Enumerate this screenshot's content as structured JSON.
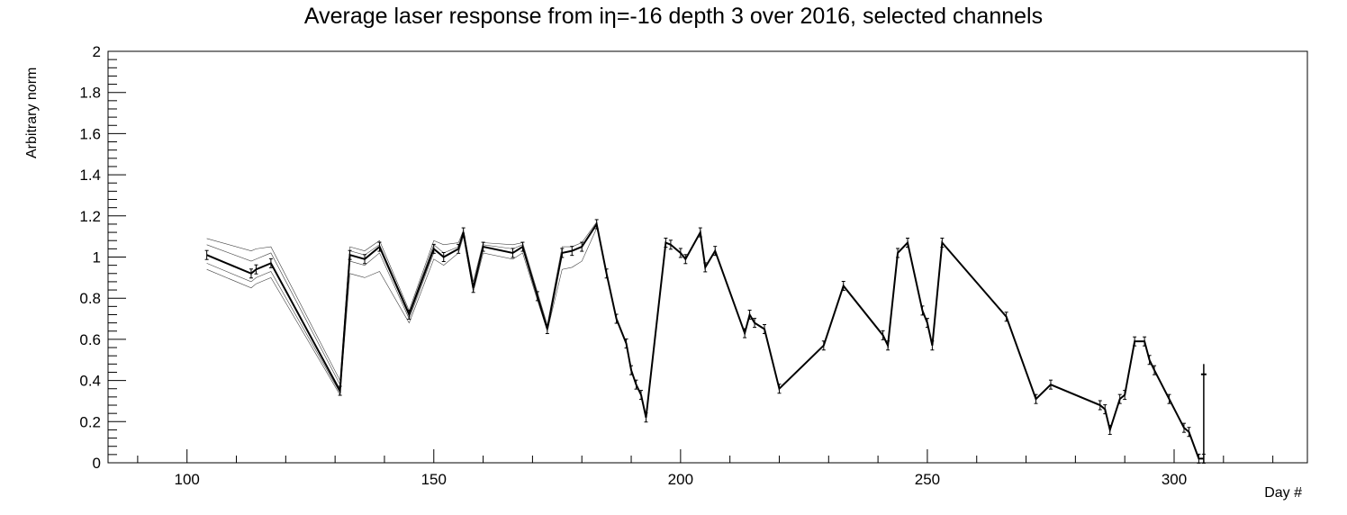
{
  "chart_data": {
    "type": "line",
    "title": "Average laser response from iη=-16 depth 3 over 2016, selected channels",
    "xlabel": "Day #",
    "ylabel": "Arbitrary norm",
    "xlim": [
      84,
      327
    ],
    "ylim": [
      0,
      2
    ],
    "x_ticks": [
      100,
      150,
      200,
      250,
      300
    ],
    "y_ticks": [
      0,
      0.2,
      0.4,
      0.6,
      0.8,
      1,
      1.2,
      1.4,
      1.6,
      1.8,
      2
    ],
    "x_tick_labels": [
      "100",
      "150",
      "200",
      "250",
      "300"
    ],
    "y_tick_labels": [
      "0",
      "0.2",
      "0.4",
      "0.6",
      "0.8",
      "1",
      "1.2",
      "1.4",
      "1.6",
      "1.8",
      "2"
    ],
    "grid": false,
    "legend": "none",
    "colors": {
      "average": "#000000",
      "channels": "#000000"
    },
    "series": [
      {
        "role": "average",
        "x": [
          104,
          113,
          114,
          117,
          131,
          133,
          136,
          139,
          145,
          150,
          152,
          155,
          156,
          158,
          160,
          166,
          168,
          171,
          173,
          176,
          178,
          180,
          183,
          185,
          187,
          189,
          190,
          191,
          192,
          193,
          197,
          198,
          200,
          201,
          204,
          205,
          207,
          213,
          214,
          215,
          217,
          220,
          229,
          233,
          241,
          242,
          244,
          246,
          249,
          250,
          251,
          253,
          266,
          272,
          275,
          285,
          286,
          287,
          289,
          290,
          292,
          294,
          295,
          296,
          299,
          302,
          303,
          305,
          306
        ],
        "y": [
          1.01,
          0.92,
          0.94,
          0.97,
          0.35,
          1.01,
          0.99,
          1.05,
          0.72,
          1.04,
          1.0,
          1.04,
          1.12,
          0.85,
          1.05,
          1.02,
          1.05,
          0.81,
          0.65,
          1.02,
          1.03,
          1.05,
          1.16,
          0.92,
          0.7,
          0.58,
          0.45,
          0.38,
          0.33,
          0.22,
          1.07,
          1.06,
          1.02,
          0.99,
          1.12,
          0.95,
          1.03,
          0.63,
          0.72,
          0.68,
          0.65,
          0.36,
          0.57,
          0.86,
          0.62,
          0.57,
          1.02,
          1.07,
          0.74,
          0.68,
          0.57,
          1.07,
          0.71,
          0.31,
          0.38,
          0.28,
          0.26,
          0.16,
          0.31,
          0.33,
          0.59,
          0.59,
          0.5,
          0.45,
          0.31,
          0.17,
          0.15,
          0.02,
          0.02
        ]
      },
      {
        "role": "channel",
        "x": [
          104,
          113,
          114,
          117,
          131,
          133,
          136,
          139,
          145,
          150,
          152,
          155,
          156,
          158,
          160,
          166,
          168,
          171,
          173,
          176,
          178,
          180,
          183
        ],
        "y": [
          1.09,
          1.03,
          1.04,
          1.05,
          0.4,
          1.05,
          1.03,
          1.08,
          0.74,
          1.08,
          1.06,
          1.07,
          1.13,
          0.88,
          1.07,
          1.06,
          1.07,
          0.83,
          0.67,
          1.05,
          1.05,
          1.07,
          1.17
        ]
      },
      {
        "role": "channel",
        "x": [
          104,
          113,
          114,
          117,
          131,
          133,
          136,
          139,
          145,
          150,
          152,
          155,
          156,
          158,
          160,
          166,
          168,
          171,
          173,
          176,
          178,
          180,
          183
        ],
        "y": [
          0.94,
          0.85,
          0.87,
          0.9,
          0.33,
          0.92,
          0.9,
          0.93,
          0.68,
          0.99,
          0.96,
          1.02,
          1.1,
          0.83,
          1.02,
          0.99,
          1.02,
          0.79,
          0.64,
          0.94,
          0.95,
          0.98,
          1.14
        ]
      },
      {
        "role": "channel",
        "x": [
          104,
          113,
          114,
          117,
          131,
          133,
          136,
          139,
          145,
          150,
          152,
          155,
          156,
          158,
          160,
          166,
          168
        ],
        "y": [
          1.06,
          0.98,
          0.99,
          1.02,
          0.38,
          1.03,
          1.01,
          1.06,
          0.73,
          1.06,
          1.02,
          1.05,
          1.12,
          0.86,
          1.06,
          1.04,
          1.06
        ]
      },
      {
        "role": "channel",
        "x": [
          104,
          113,
          114,
          117,
          131,
          133,
          136,
          139,
          145,
          150
        ],
        "y": [
          0.97,
          0.88,
          0.9,
          0.93,
          0.34,
          0.98,
          0.96,
          1.02,
          0.7,
          1.02
        ]
      }
    ]
  }
}
